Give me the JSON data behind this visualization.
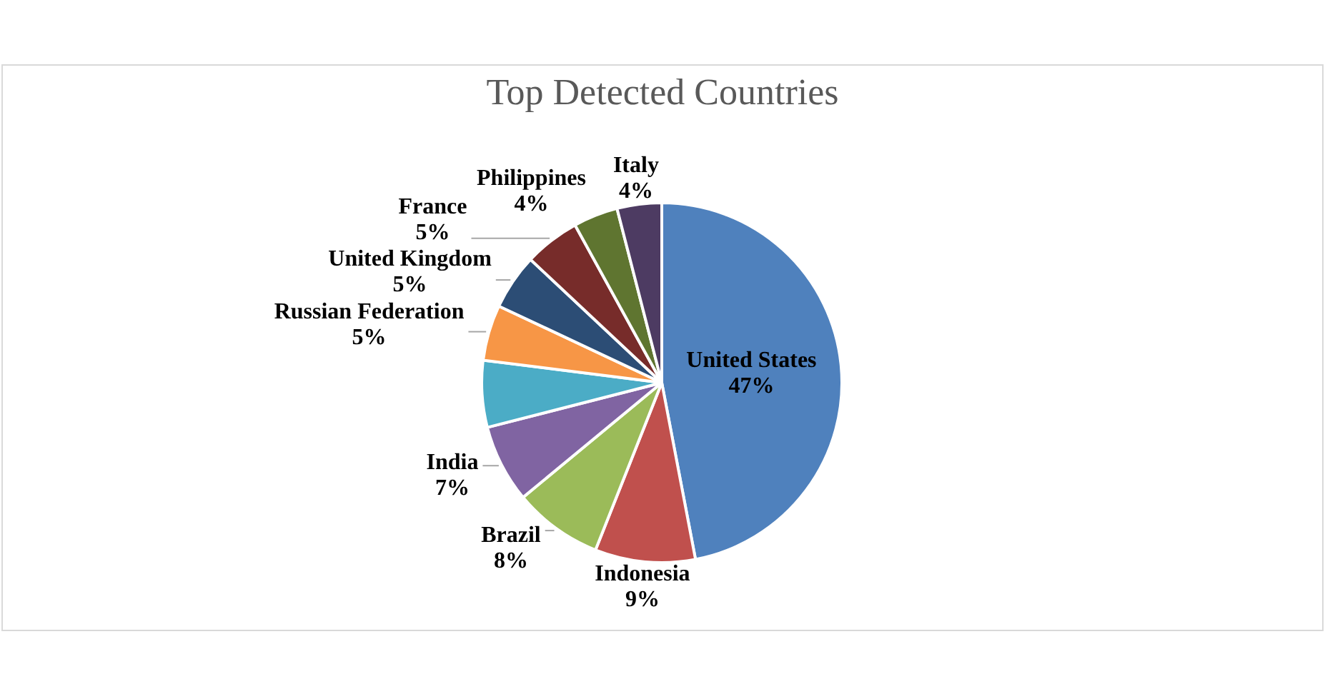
{
  "chart_data": {
    "type": "pie",
    "title": "Top Detected Countries",
    "categories": [
      "United States",
      "Indonesia",
      "Brazil",
      "India",
      null,
      "Russian Federation",
      "United Kingdom",
      "France",
      "Philippines",
      "Italy"
    ],
    "values": [
      47,
      9,
      8,
      7,
      6,
      5,
      5,
      5,
      4,
      4
    ],
    "value_labels": [
      "47%",
      "9%",
      "8%",
      "7%",
      null,
      "5%",
      "5%",
      "5%",
      "4%",
      "4%"
    ],
    "colors": [
      "#4f81bd",
      "#c0504d",
      "#9bbb59",
      "#8064a2",
      "#4bacc6",
      "#f79646",
      "#2c4d75",
      "#772c2a",
      "#5f7530",
      "#4d3b62"
    ]
  }
}
